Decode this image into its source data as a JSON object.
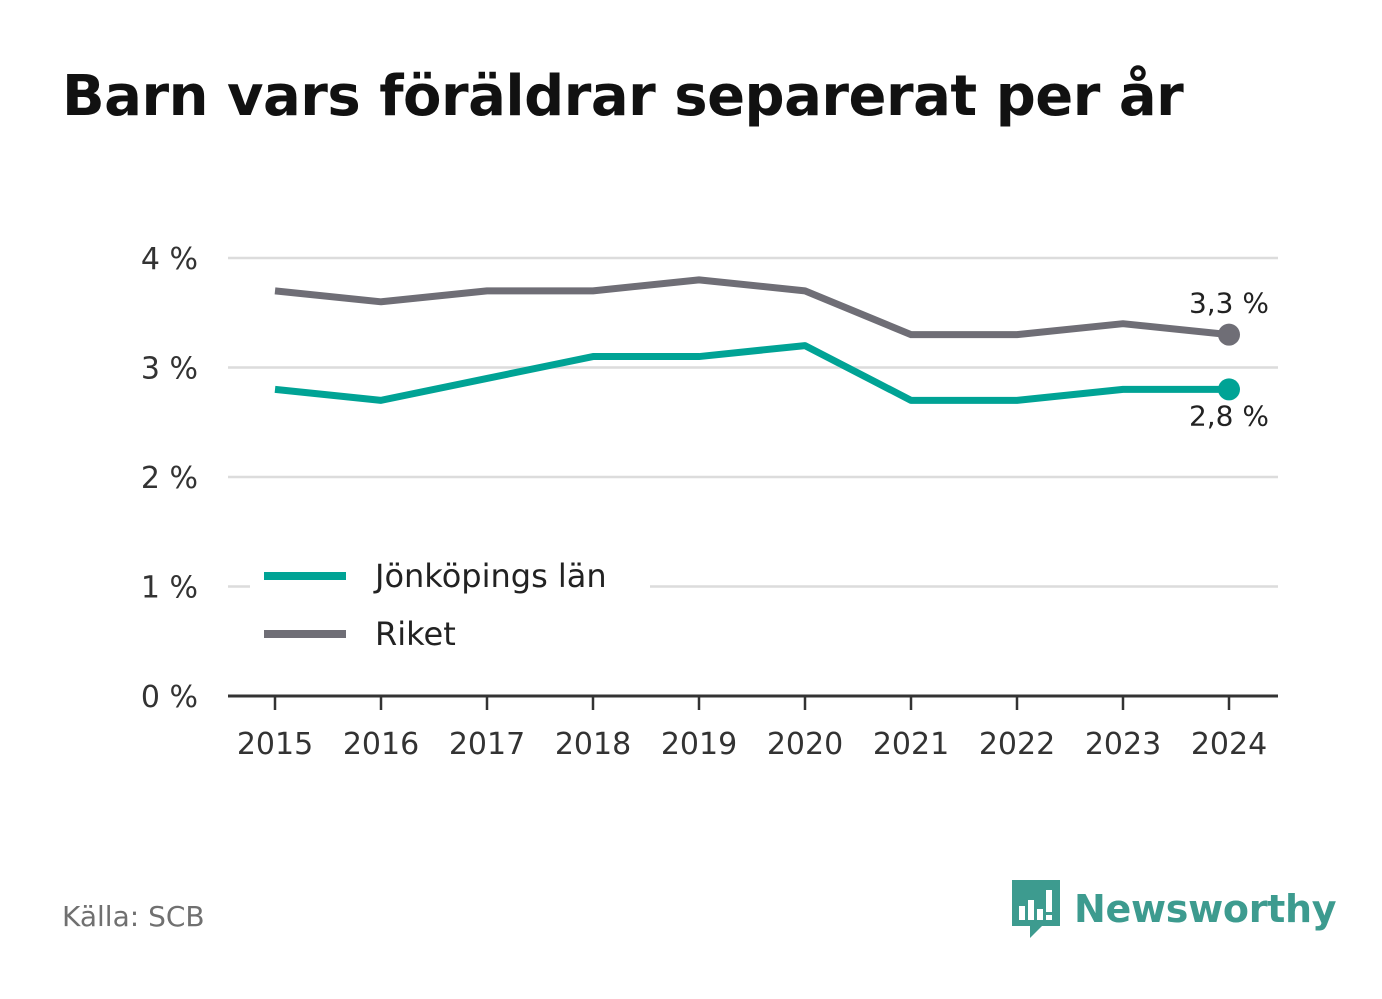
{
  "title": "Barn vars föräldrar separerat per år",
  "source": "Källa: SCB",
  "brand": {
    "name": "Newsworthy",
    "icon": "newsworthy-logo-icon",
    "color": "#3d9b8f"
  },
  "chart_data": {
    "type": "line",
    "title": "Barn vars föräldrar separerat per år",
    "xlabel": "",
    "ylabel": "",
    "x": [
      "2015",
      "2016",
      "2017",
      "2018",
      "2019",
      "2020",
      "2021",
      "2022",
      "2023",
      "2024"
    ],
    "ylim": [
      0,
      4
    ],
    "yticks": [
      0,
      1,
      2,
      3,
      4
    ],
    "ytick_labels": [
      "0 %",
      "1 %",
      "2 %",
      "3 %",
      "4 %"
    ],
    "grid": true,
    "legend_position": "bottom-left",
    "series": [
      {
        "name": "Jönköpings län",
        "color": "#00a395",
        "values": [
          2.8,
          2.7,
          2.9,
          3.1,
          3.1,
          3.2,
          2.7,
          2.7,
          2.8,
          2.8
        ],
        "end_label": "2,8 %"
      },
      {
        "name": "Riket",
        "color": "#6f6e76",
        "values": [
          3.7,
          3.6,
          3.7,
          3.7,
          3.8,
          3.7,
          3.3,
          3.3,
          3.4,
          3.3
        ],
        "end_label": "3,3 %"
      }
    ]
  }
}
